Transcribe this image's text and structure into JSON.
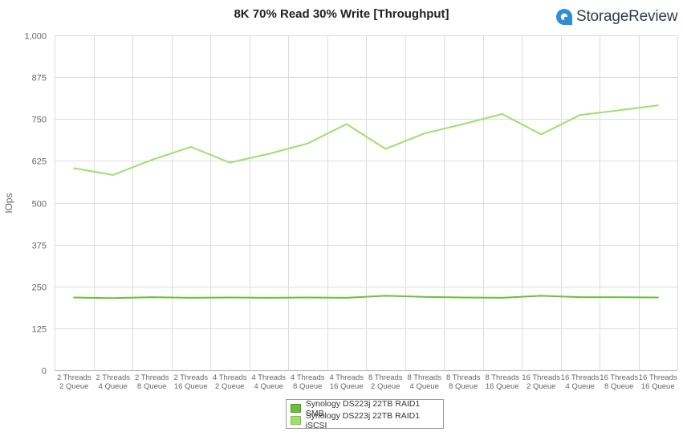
{
  "header": {
    "title": "8K 70% Read 30% Write [Throughput]",
    "logo_text": "StorageReview",
    "logo_color": "#2d8fd5"
  },
  "chart_data": {
    "type": "line",
    "title": "8K 70% Read 30% Write [Throughput]",
    "xlabel": "",
    "ylabel": "IOps",
    "ylim": [
      0,
      1000
    ],
    "yticks": [
      "0",
      "125",
      "250",
      "375",
      "500",
      "625",
      "750",
      "875",
      "1,000"
    ],
    "grid": true,
    "legend_position": "bottom-center",
    "categories": [
      [
        "2 Threads",
        "2 Queue"
      ],
      [
        "2 Threads",
        "4 Queue"
      ],
      [
        "2 Threads",
        "8 Queue"
      ],
      [
        "2 Threads",
        "16 Queue"
      ],
      [
        "4 Threads",
        "2 Queue"
      ],
      [
        "4 Threads",
        "4 Queue"
      ],
      [
        "4 Threads",
        "8 Queue"
      ],
      [
        "4 Threads",
        "16 Queue"
      ],
      [
        "8 Threads",
        "2 Queue"
      ],
      [
        "8 Threads",
        "4 Queue"
      ],
      [
        "8 Threads",
        "8 Queue"
      ],
      [
        "8 Threads",
        "16 Queue"
      ],
      [
        "16 Threads",
        "2 Queue"
      ],
      [
        "16 Threads",
        "4 Queue"
      ],
      [
        "16 Threads",
        "8 Queue"
      ],
      [
        "16 Threads",
        "16 Queue"
      ]
    ],
    "series": [
      {
        "name": "Synology DS223j 22TB RAID1 SMB",
        "color": "#6bbf3a",
        "values": [
          217,
          215,
          218,
          216,
          217,
          216,
          217,
          216,
          222,
          219,
          217,
          216,
          222,
          218,
          218,
          217
        ]
      },
      {
        "name": "Synology DS223j 22TB RAID1 iSCSI",
        "color": "#9ee06c",
        "values": [
          603,
          583,
          628,
          667,
          620,
          646,
          677,
          735,
          661,
          707,
          735,
          765,
          704,
          762,
          776,
          791
        ]
      }
    ]
  }
}
